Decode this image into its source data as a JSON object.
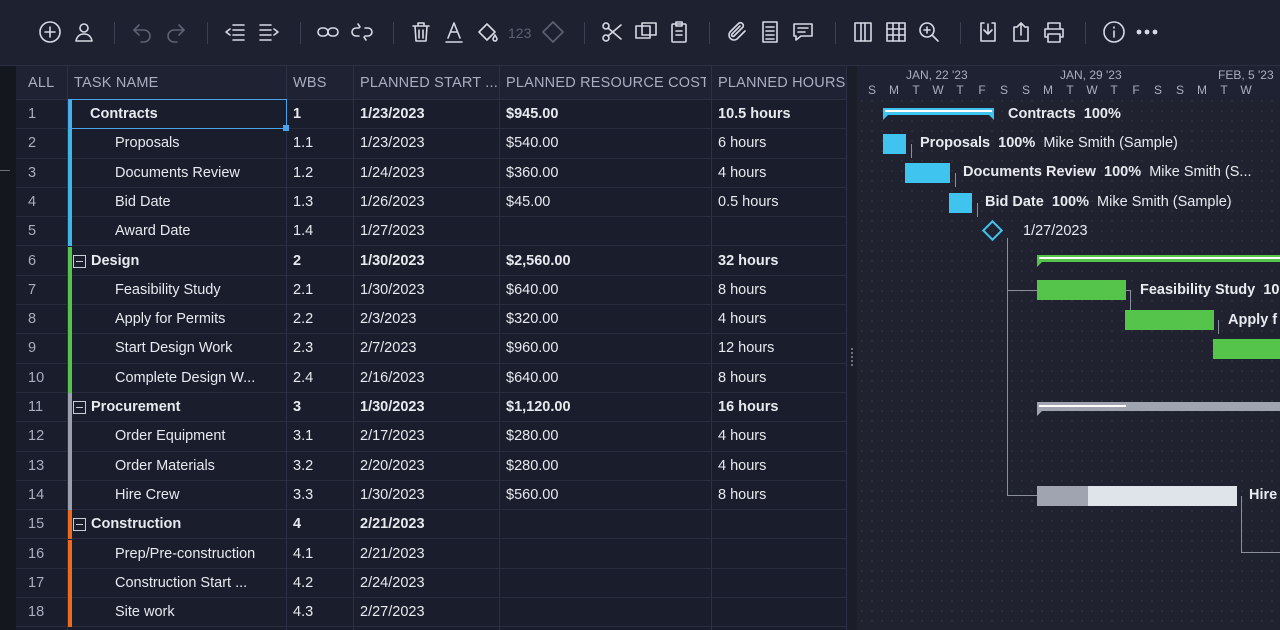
{
  "toolbar": {
    "icons": [
      "add-icon",
      "user-icon",
      "undo-icon",
      "redo-icon",
      "outdent-icon",
      "indent-icon",
      "link-icon",
      "unlink-icon",
      "delete-icon",
      "text-color-icon",
      "fill-color-icon",
      "milestone-icon",
      "cut-icon",
      "copy-icon",
      "paste-icon",
      "attach-icon",
      "notes-icon",
      "comment-icon",
      "columns-icon",
      "table-icon",
      "zoom-icon",
      "import-icon",
      "export-icon",
      "print-icon",
      "info-icon",
      "more-icon"
    ],
    "number_format": "123"
  },
  "columns": {
    "all": "ALL",
    "task": "TASK NAME",
    "wbs": "WBS",
    "start": "PLANNED START ...",
    "cost": "PLANNED RESOURCE COST",
    "hours": "PLANNED HOURS"
  },
  "rows": [
    {
      "n": "1",
      "task": "Contracts",
      "wbs": "1",
      "start": "1/23/2023",
      "cost": "$945.00",
      "hours": "10.5 hours"
    },
    {
      "n": "2",
      "task": "Proposals",
      "wbs": "1.1",
      "start": "1/23/2023",
      "cost": "$540.00",
      "hours": "6 hours"
    },
    {
      "n": "3",
      "task": "Documents Review",
      "wbs": "1.2",
      "start": "1/24/2023",
      "cost": "$360.00",
      "hours": "4 hours"
    },
    {
      "n": "4",
      "task": "Bid Date",
      "wbs": "1.3",
      "start": "1/26/2023",
      "cost": "$45.00",
      "hours": "0.5 hours"
    },
    {
      "n": "5",
      "task": "Award Date",
      "wbs": "1.4",
      "start": "1/27/2023",
      "cost": "",
      "hours": ""
    },
    {
      "n": "6",
      "task": "Design",
      "wbs": "2",
      "start": "1/30/2023",
      "cost": "$2,560.00",
      "hours": "32 hours"
    },
    {
      "n": "7",
      "task": "Feasibility Study",
      "wbs": "2.1",
      "start": "1/30/2023",
      "cost": "$640.00",
      "hours": "8 hours"
    },
    {
      "n": "8",
      "task": "Apply for Permits",
      "wbs": "2.2",
      "start": "2/3/2023",
      "cost": "$320.00",
      "hours": "4 hours"
    },
    {
      "n": "9",
      "task": "Start Design Work",
      "wbs": "2.3",
      "start": "2/7/2023",
      "cost": "$960.00",
      "hours": "12 hours"
    },
    {
      "n": "10",
      "task": "Complete Design W...",
      "wbs": "2.4",
      "start": "2/16/2023",
      "cost": "$640.00",
      "hours": "8 hours"
    },
    {
      "n": "11",
      "task": "Procurement",
      "wbs": "3",
      "start": "1/30/2023",
      "cost": "$1,120.00",
      "hours": "16 hours"
    },
    {
      "n": "12",
      "task": "Order Equipment",
      "wbs": "3.1",
      "start": "2/17/2023",
      "cost": "$280.00",
      "hours": "4 hours"
    },
    {
      "n": "13",
      "task": "Order Materials",
      "wbs": "3.2",
      "start": "2/20/2023",
      "cost": "$280.00",
      "hours": "4 hours"
    },
    {
      "n": "14",
      "task": "Hire Crew",
      "wbs": "3.3",
      "start": "1/30/2023",
      "cost": "$560.00",
      "hours": "8 hours"
    },
    {
      "n": "15",
      "task": "Construction",
      "wbs": "4",
      "start": "2/21/2023",
      "cost": "",
      "hours": ""
    },
    {
      "n": "16",
      "task": "Prep/Pre-construction",
      "wbs": "4.1",
      "start": "2/21/2023",
      "cost": "",
      "hours": ""
    },
    {
      "n": "17",
      "task": "Construction Start ...",
      "wbs": "4.2",
      "start": "2/24/2023",
      "cost": "",
      "hours": ""
    },
    {
      "n": "18",
      "task": "Site work",
      "wbs": "4.3",
      "start": "2/27/2023",
      "cost": "",
      "hours": ""
    }
  ],
  "row_meta": [
    {
      "level": 0,
      "bold": true,
      "color": "#3fb6e8",
      "collapse": false
    },
    {
      "level": 1,
      "bold": false,
      "color": "#3fb6e8",
      "collapse": false
    },
    {
      "level": 1,
      "bold": false,
      "color": "#3fb6e8",
      "collapse": false
    },
    {
      "level": 1,
      "bold": false,
      "color": "#3fb6e8",
      "collapse": false
    },
    {
      "level": 1,
      "bold": false,
      "color": "#3fb6e8",
      "collapse": false
    },
    {
      "level": 0,
      "bold": true,
      "color": "#55c44a",
      "collapse": true
    },
    {
      "level": 1,
      "bold": false,
      "color": "#55c44a",
      "collapse": false
    },
    {
      "level": 1,
      "bold": false,
      "color": "#55c44a",
      "collapse": false
    },
    {
      "level": 1,
      "bold": false,
      "color": "#55c44a",
      "collapse": false
    },
    {
      "level": 1,
      "bold": false,
      "color": "#55c44a",
      "collapse": false
    },
    {
      "level": 0,
      "bold": true,
      "color": "#9ca0ad",
      "collapse": true
    },
    {
      "level": 1,
      "bold": false,
      "color": "#9ca0ad",
      "collapse": false
    },
    {
      "level": 1,
      "bold": false,
      "color": "#9ca0ad",
      "collapse": false
    },
    {
      "level": 1,
      "bold": false,
      "color": "#9ca0ad",
      "collapse": false
    },
    {
      "level": 0,
      "bold": true,
      "color": "#ee6a1e",
      "collapse": true
    },
    {
      "level": 1,
      "bold": false,
      "color": "#ee6a1e",
      "collapse": false
    },
    {
      "level": 1,
      "bold": false,
      "color": "#ee6a1e",
      "collapse": false
    },
    {
      "level": 1,
      "bold": false,
      "color": "#ee6a1e",
      "collapse": false
    }
  ],
  "gantt": {
    "weeks": [
      "JAN, 22 '23",
      "JAN, 29 '23",
      "FEB, 5 '23"
    ],
    "days": [
      "S",
      "M",
      "T",
      "W",
      "T",
      "F",
      "S",
      "S",
      "M",
      "T",
      "W",
      "T",
      "F",
      "S",
      "S",
      "M",
      "T",
      "W"
    ],
    "labels": {
      "contracts_name": "Contracts",
      "contracts_pct": "100%",
      "proposals_name": "Proposals",
      "proposals_pct": "100%",
      "proposals_res": "Mike Smith (Sample)",
      "docs_name": "Documents Review",
      "docs_pct": "100%",
      "docs_res": "Mike Smith (S...",
      "bid_name": "Bid Date",
      "bid_pct": "100%",
      "bid_res": "Mike Smith (Sample)",
      "award_date": "1/27/2023",
      "feas_name": "Feasibility Study",
      "feas_pct": "10",
      "permits_name": "Apply f",
      "hire_name": "Hire"
    },
    "colors": {
      "contracts": "#3fc4f0",
      "design": "#55c44a",
      "procurement": "#a0a4b0",
      "hire_fill": "#dfe3ea"
    }
  }
}
